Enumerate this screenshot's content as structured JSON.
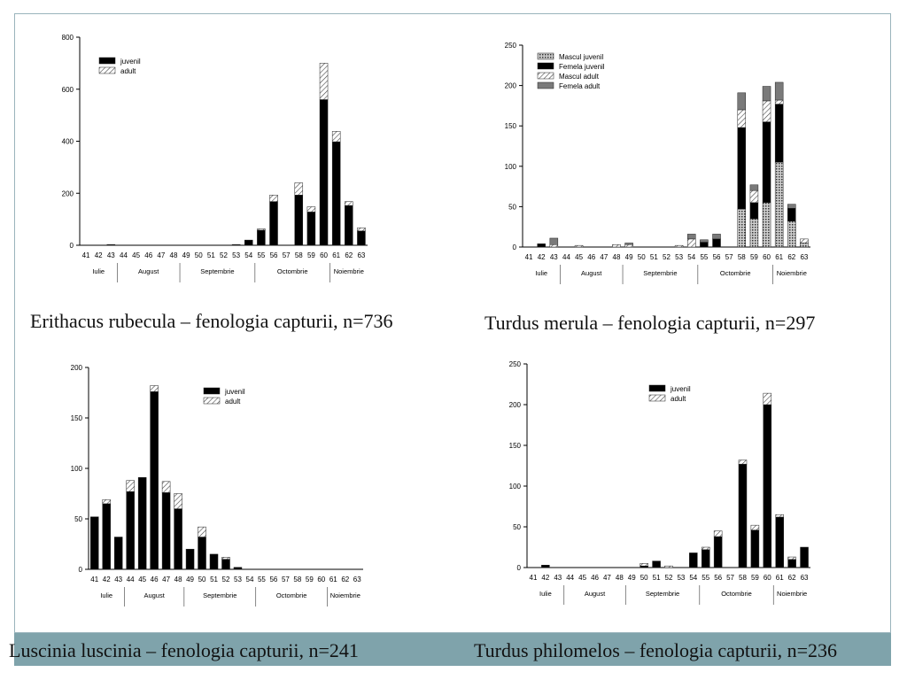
{
  "captions": [
    "Erithacus rubecula – fenologia capturii, n=736",
    "Turdus merula – fenologia capturii, n=297",
    "Luscinia luscinia – fenologia capturii, n=241",
    "Turdus philomelos – fenologia capturii, n=236"
  ],
  "colors": {
    "juvenil": "#000000",
    "adult_hatch": "#444444",
    "mascul_juvenil_hatch": "#333333",
    "femela_adult": "#7a7a7a",
    "band": "#7fa3ab",
    "frame": "#9ab4bc"
  },
  "chart_data": [
    {
      "type": "bar",
      "stacked": true,
      "categories": [
        "41",
        "42",
        "43",
        "44",
        "45",
        "46",
        "47",
        "48",
        "49",
        "50",
        "51",
        "52",
        "53",
        "54",
        "55",
        "56",
        "57",
        "58",
        "59",
        "60",
        "61",
        "62",
        "63"
      ],
      "months": [
        {
          "label": "Iulie",
          "weeks": [
            "41",
            "42",
            "43"
          ]
        },
        {
          "label": "August",
          "weeks": [
            "44",
            "45",
            "46",
            "47",
            "48"
          ]
        },
        {
          "label": "Septembrie",
          "weeks": [
            "49",
            "50",
            "51",
            "52",
            "53",
            "54"
          ]
        },
        {
          "label": "Octombrie",
          "weeks": [
            "55",
            "56",
            "57",
            "58",
            "59",
            "60"
          ]
        },
        {
          "label": "Noiembrie",
          "weeks": [
            "61",
            "62",
            "63"
          ]
        }
      ],
      "ylim": [
        0,
        800
      ],
      "yticks": [
        0,
        200,
        400,
        600,
        800
      ],
      "legend_position": "top-left",
      "series": [
        {
          "name": "juvenil",
          "pattern": "solid",
          "values": [
            0,
            0,
            3,
            0,
            0,
            0,
            0,
            0,
            0,
            0,
            0,
            0,
            3,
            20,
            58,
            168,
            0,
            193,
            128,
            560,
            398,
            153,
            55
          ]
        },
        {
          "name": "adult",
          "pattern": "hatch",
          "values": [
            0,
            0,
            0,
            0,
            0,
            0,
            0,
            0,
            0,
            0,
            0,
            0,
            0,
            0,
            5,
            25,
            0,
            47,
            20,
            140,
            40,
            15,
            12
          ]
        }
      ]
    },
    {
      "type": "bar",
      "stacked": true,
      "categories": [
        "41",
        "42",
        "43",
        "44",
        "45",
        "46",
        "47",
        "48",
        "49",
        "50",
        "51",
        "52",
        "53",
        "54",
        "55",
        "56",
        "57",
        "58",
        "59",
        "60",
        "61",
        "62",
        "63"
      ],
      "months": [
        {
          "label": "Iulie",
          "weeks": [
            "41",
            "42",
            "43"
          ]
        },
        {
          "label": "August",
          "weeks": [
            "44",
            "45",
            "46",
            "47",
            "48"
          ]
        },
        {
          "label": "Septembrie",
          "weeks": [
            "49",
            "50",
            "51",
            "52",
            "53",
            "54"
          ]
        },
        {
          "label": "Octombrie",
          "weeks": [
            "55",
            "56",
            "57",
            "58",
            "59",
            "60"
          ]
        },
        {
          "label": "Noiembrie",
          "weeks": [
            "61",
            "62",
            "63"
          ]
        }
      ],
      "ylim": [
        0,
        250
      ],
      "yticks": [
        0,
        50,
        100,
        150,
        200,
        250
      ],
      "legend_position": "top-left",
      "series": [
        {
          "name": "Mascul juvenil",
          "pattern": "crosshatch",
          "values": [
            0,
            0,
            0,
            0,
            0,
            0,
            0,
            0,
            0,
            0,
            0,
            0,
            0,
            0,
            0,
            0,
            0,
            47,
            35,
            55,
            105,
            32,
            5
          ]
        },
        {
          "name": "Femela juvenil",
          "pattern": "solid",
          "values": [
            0,
            4,
            0,
            0,
            0,
            0,
            0,
            0,
            0,
            0,
            0,
            0,
            0,
            0,
            6,
            10,
            0,
            101,
            20,
            100,
            72,
            16,
            0
          ]
        },
        {
          "name": "Mascul adult",
          "pattern": "hatch",
          "values": [
            0,
            0,
            3,
            0,
            2,
            0,
            0,
            3,
            3,
            0,
            0,
            0,
            2,
            10,
            0,
            0,
            0,
            22,
            15,
            26,
            5,
            0,
            5
          ]
        },
        {
          "name": "Femela adult",
          "pattern": "grey",
          "values": [
            0,
            0,
            8,
            0,
            0,
            0,
            0,
            0,
            2,
            0,
            0,
            0,
            0,
            6,
            3,
            6,
            0,
            21,
            7,
            18,
            22,
            5,
            0
          ]
        }
      ]
    },
    {
      "type": "bar",
      "stacked": true,
      "categories": [
        "41",
        "42",
        "43",
        "44",
        "45",
        "46",
        "47",
        "48",
        "49",
        "50",
        "51",
        "52",
        "53",
        "54",
        "55",
        "56",
        "57",
        "58",
        "59",
        "60",
        "61",
        "62",
        "63"
      ],
      "months": [
        {
          "label": "Iulie",
          "weeks": [
            "41",
            "42",
            "43"
          ]
        },
        {
          "label": "August",
          "weeks": [
            "44",
            "45",
            "46",
            "47",
            "48"
          ]
        },
        {
          "label": "Septembrie",
          "weeks": [
            "49",
            "50",
            "51",
            "52",
            "53",
            "54"
          ]
        },
        {
          "label": "Octombrie",
          "weeks": [
            "55",
            "56",
            "57",
            "58",
            "59",
            "60"
          ]
        },
        {
          "label": "Noiembrie",
          "weeks": [
            "61",
            "62",
            "63"
          ]
        }
      ],
      "ylim": [
        0,
        200
      ],
      "yticks": [
        0,
        50,
        100,
        150,
        200
      ],
      "legend_position": "top-right",
      "series": [
        {
          "name": "juvenil",
          "pattern": "solid",
          "values": [
            52,
            65,
            32,
            77,
            91,
            176,
            76,
            60,
            20,
            32,
            15,
            10,
            2,
            0,
            0,
            0,
            0,
            0,
            0,
            0,
            0,
            0,
            0
          ]
        },
        {
          "name": "adult",
          "pattern": "hatch",
          "values": [
            0,
            4,
            0,
            11,
            0,
            6,
            11,
            15,
            0,
            10,
            0,
            2,
            0,
            0,
            0,
            0,
            0,
            0,
            0,
            0,
            0,
            0,
            0
          ]
        }
      ]
    },
    {
      "type": "bar",
      "stacked": true,
      "categories": [
        "41",
        "42",
        "43",
        "44",
        "45",
        "46",
        "47",
        "48",
        "49",
        "50",
        "51",
        "52",
        "53",
        "54",
        "55",
        "56",
        "57",
        "58",
        "59",
        "60",
        "61",
        "62",
        "63"
      ],
      "months": [
        {
          "label": "Iulie",
          "weeks": [
            "41",
            "42",
            "43"
          ]
        },
        {
          "label": "August",
          "weeks": [
            "44",
            "45",
            "46",
            "47",
            "48"
          ]
        },
        {
          "label": "Septembrie",
          "weeks": [
            "49",
            "50",
            "51",
            "52",
            "53",
            "54"
          ]
        },
        {
          "label": "Octombrie",
          "weeks": [
            "55",
            "56",
            "57",
            "58",
            "59",
            "60"
          ]
        },
        {
          "label": "Noiembrie",
          "weeks": [
            "61",
            "62",
            "63"
          ]
        }
      ],
      "ylim": [
        0,
        250
      ],
      "yticks": [
        0,
        50,
        100,
        150,
        200,
        250
      ],
      "legend_position": "top-center",
      "series": [
        {
          "name": "juvenil",
          "pattern": "solid",
          "values": [
            0,
            3,
            0,
            0,
            0,
            0,
            0,
            0,
            0,
            2,
            8,
            0,
            0,
            18,
            22,
            38,
            0,
            127,
            46,
            200,
            62,
            10,
            25
          ]
        },
        {
          "name": "adult",
          "pattern": "hatch",
          "values": [
            0,
            0,
            0,
            0,
            0,
            0,
            0,
            0,
            0,
            3,
            0,
            2,
            0,
            0,
            3,
            7,
            0,
            5,
            6,
            14,
            3,
            3,
            0
          ]
        }
      ]
    }
  ]
}
